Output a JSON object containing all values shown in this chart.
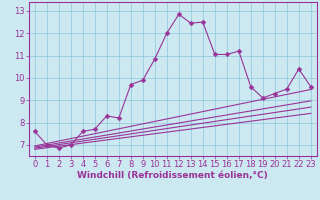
{
  "xlabel": "Windchill (Refroidissement éolien,°C)",
  "ylabel": "",
  "bg_color": "#cce8f0",
  "grid_color": "#99cce0",
  "line_color": "#993399",
  "x": [
    0,
    1,
    2,
    3,
    4,
    5,
    6,
    7,
    8,
    9,
    10,
    11,
    12,
    13,
    14,
    15,
    16,
    17,
    18,
    19,
    20,
    21,
    22,
    23
  ],
  "y_main": [
    7.6,
    7.0,
    6.85,
    7.0,
    7.6,
    7.7,
    8.3,
    8.2,
    9.7,
    9.9,
    10.85,
    12.0,
    12.85,
    12.45,
    12.5,
    11.05,
    11.05,
    11.2,
    9.6,
    9.1,
    9.3,
    9.5,
    10.4,
    9.6
  ],
  "linear_lines": [
    [
      6.8,
      6.87,
      6.94,
      7.01,
      7.08,
      7.15,
      7.22,
      7.29,
      7.36,
      7.43,
      7.5,
      7.57,
      7.64,
      7.71,
      7.78,
      7.85,
      7.92,
      7.99,
      8.06,
      8.13,
      8.2,
      8.27,
      8.34,
      8.41
    ],
    [
      6.85,
      6.93,
      7.01,
      7.09,
      7.17,
      7.25,
      7.33,
      7.41,
      7.49,
      7.57,
      7.65,
      7.73,
      7.81,
      7.89,
      7.97,
      8.05,
      8.13,
      8.21,
      8.29,
      8.37,
      8.45,
      8.53,
      8.61,
      8.69
    ],
    [
      6.9,
      6.99,
      7.08,
      7.17,
      7.26,
      7.35,
      7.44,
      7.53,
      7.62,
      7.71,
      7.8,
      7.89,
      7.98,
      8.07,
      8.16,
      8.25,
      8.34,
      8.43,
      8.52,
      8.61,
      8.7,
      8.79,
      8.88,
      8.97
    ],
    [
      6.95,
      7.06,
      7.17,
      7.28,
      7.39,
      7.5,
      7.61,
      7.72,
      7.83,
      7.94,
      8.05,
      8.16,
      8.27,
      8.38,
      8.49,
      8.6,
      8.71,
      8.82,
      8.93,
      9.04,
      9.15,
      9.26,
      9.37,
      9.48
    ]
  ],
  "xlim": [
    -0.5,
    23.5
  ],
  "ylim": [
    6.5,
    13.4
  ],
  "yticks": [
    7,
    8,
    9,
    10,
    11,
    12,
    13
  ],
  "xticks": [
    0,
    1,
    2,
    3,
    4,
    5,
    6,
    7,
    8,
    9,
    10,
    11,
    12,
    13,
    14,
    15,
    16,
    17,
    18,
    19,
    20,
    21,
    22,
    23
  ],
  "marker": "D",
  "main_markersize": 2.5,
  "linear_markersize": 1.5,
  "linewidth": 0.8,
  "xlabel_fontsize": 6.5,
  "tick_fontsize": 6.0,
  "font_color": "#993399",
  "spine_color": "#993399"
}
